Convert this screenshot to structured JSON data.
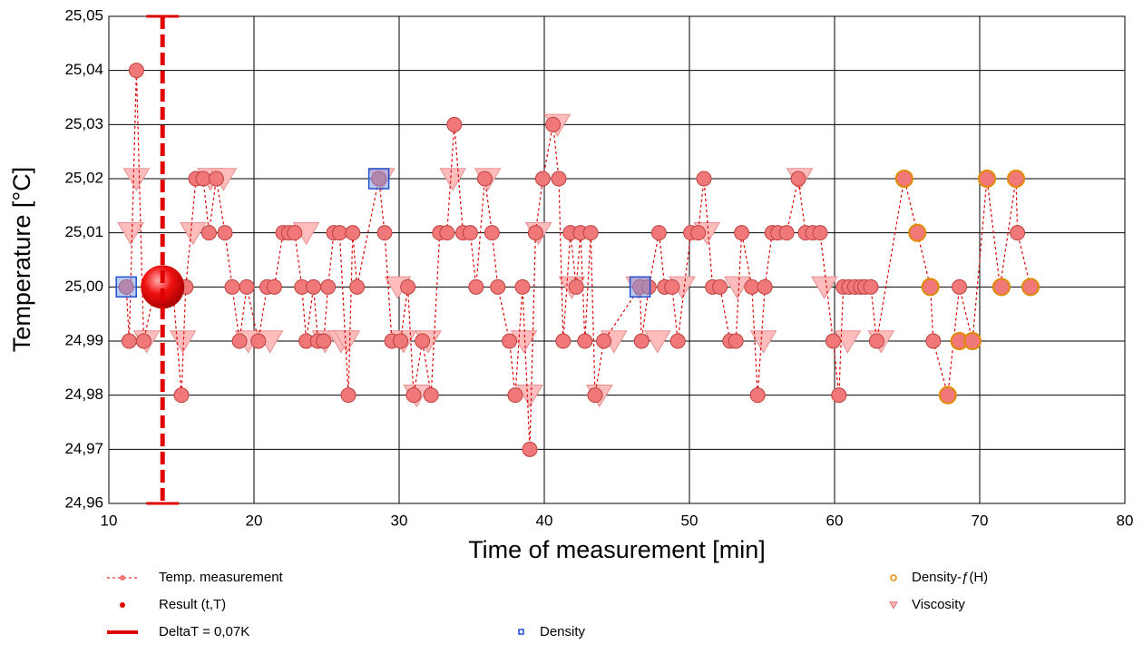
{
  "chart_data": {
    "type": "scatter",
    "x_label": "Time of measurement [min]",
    "y_label": "Temperature [°C]",
    "xlim": [
      10,
      80
    ],
    "xticks": [
      10,
      20,
      30,
      40,
      50,
      60,
      70,
      80
    ],
    "ylim": [
      24.96,
      25.05
    ],
    "yticks": [
      {
        "value": 24.96,
        "label": "24,96"
      },
      {
        "value": 24.97,
        "label": "24,97"
      },
      {
        "value": 24.98,
        "label": "24,98"
      },
      {
        "value": 24.99,
        "label": "24,99"
      },
      {
        "value": 25.0,
        "label": "25,00"
      },
      {
        "value": 25.01,
        "label": "25,01"
      },
      {
        "value": 25.02,
        "label": "25,02"
      },
      {
        "value": 25.03,
        "label": "25,03"
      },
      {
        "value": 25.04,
        "label": "25,04"
      },
      {
        "value": 25.05,
        "label": "25,05"
      }
    ],
    "grid": true,
    "series": [
      {
        "name": "Viscosity",
        "kind": "triangle",
        "color": "#ffbcbc",
        "x": [
          11.5,
          11.9,
          12.6,
          15.1,
          15.8,
          17.0,
          17.9,
          19.6,
          21.1,
          23.6,
          24.9,
          26.0,
          26.4,
          28.8,
          29.9,
          30.3,
          31.2,
          32.0,
          33.7,
          36.1,
          38.6,
          39.0,
          39.6,
          40.9,
          41.9,
          43.8,
          44.8,
          46.5,
          47.8,
          49.5,
          51.2,
          53.3,
          55.1,
          57.6,
          59.3,
          60.9,
          63.2
        ],
        "values": [
          25.01,
          25.02,
          24.99,
          24.99,
          25.01,
          25.02,
          25.02,
          24.99,
          24.99,
          25.01,
          24.99,
          24.99,
          24.99,
          25.02,
          25.0,
          24.99,
          24.98,
          24.99,
          25.02,
          25.02,
          24.99,
          24.98,
          25.01,
          25.03,
          25.0,
          24.98,
          24.99,
          25.0,
          24.99,
          25.0,
          25.01,
          25.0,
          24.99,
          25.02,
          25.0,
          24.99,
          24.99
        ]
      },
      {
        "name": "Temp. measurement",
        "kind": "line",
        "color": "#f07878",
        "x": [
          11.2,
          11.4,
          11.9,
          12.4,
          13.2,
          13.6,
          14.0,
          14.4,
          15.0,
          15.3,
          16.0,
          16.5,
          16.9,
          17.4,
          18.0,
          18.5,
          19.0,
          19.5,
          20.3,
          20.9,
          21.4,
          22.0,
          22.4,
          22.8,
          23.3,
          23.6,
          24.1,
          24.4,
          24.8,
          25.1,
          25.5,
          25.9,
          26.5,
          26.8,
          27.1,
          28.6,
          29.0,
          29.5,
          30.1,
          30.6,
          31.0,
          31.6,
          32.2,
          32.8,
          33.3,
          33.8,
          34.4,
          34.9,
          35.3,
          35.9,
          36.4,
          36.8,
          37.6,
          38.0,
          38.5,
          39.0,
          39.4,
          39.9,
          40.6,
          41.0,
          41.3,
          41.8,
          42.2,
          42.5,
          42.8,
          43.2,
          43.5,
          44.1,
          46.6,
          46.7,
          47.2,
          47.9,
          48.3,
          48.8,
          49.2,
          50.1,
          50.6,
          51.0,
          51.6,
          52.1,
          52.8,
          53.2,
          53.6,
          54.3,
          54.7,
          55.2,
          55.7,
          56.1,
          56.7,
          57.5,
          58.0,
          58.5,
          59.0,
          59.9,
          60.3,
          60.6,
          61.0,
          61.4,
          61.8,
          62.1,
          62.5,
          62.9,
          64.8,
          65.7,
          66.6,
          66.8,
          67.8,
          68.6,
          69.5,
          70.5,
          71.4,
          72.5,
          72.6,
          73.5
        ],
        "values": [
          25.0,
          24.99,
          25.04,
          24.99,
          25.0,
          25.0,
          25.0,
          25.0,
          24.98,
          25.0,
          25.02,
          25.02,
          25.01,
          25.02,
          25.01,
          25.0,
          24.99,
          25.0,
          24.99,
          25.0,
          25.0,
          25.01,
          25.01,
          25.01,
          25.0,
          24.99,
          25.0,
          24.99,
          24.99,
          25.0,
          25.01,
          25.01,
          24.98,
          25.01,
          25.0,
          25.02,
          25.01,
          24.99,
          24.99,
          25.0,
          24.98,
          24.99,
          24.98,
          25.01,
          25.01,
          25.03,
          25.01,
          25.01,
          25.0,
          25.02,
          25.01,
          25.0,
          24.99,
          24.98,
          25.0,
          24.97,
          25.01,
          25.02,
          25.03,
          25.02,
          24.99,
          25.01,
          25.0,
          25.01,
          24.99,
          25.01,
          24.98,
          24.99,
          25.0,
          24.99,
          25.0,
          25.01,
          25.0,
          25.0,
          24.99,
          25.01,
          25.01,
          25.02,
          25.0,
          25.0,
          24.99,
          24.99,
          25.01,
          25.0,
          24.98,
          25.0,
          25.01,
          25.01,
          25.01,
          25.02,
          25.01,
          25.01,
          25.01,
          24.99,
          24.98,
          25.0,
          25.0,
          25.0,
          25.0,
          25.0,
          25.0,
          24.99,
          25.02,
          25.01,
          25.0,
          24.99,
          24.98,
          25.0,
          24.99,
          25.02,
          25.0,
          25.02,
          25.01,
          25.0
        ]
      },
      {
        "name": "Density-ƒ(H)",
        "kind": "ring",
        "color": "#e08a00",
        "x": [
          64.8,
          65.7,
          66.6,
          67.8,
          68.6,
          69.5,
          70.5,
          71.5,
          72.5,
          73.5
        ],
        "values": [
          25.02,
          25.01,
          25.0,
          24.98,
          24.99,
          24.99,
          25.02,
          25.0,
          25.02,
          25.0
        ]
      },
      {
        "name": "Density",
        "kind": "square",
        "color": "#2050d0",
        "x": [
          11.2,
          28.6,
          46.6
        ],
        "values": [
          25.0,
          25.02,
          25.0
        ]
      },
      {
        "name": "Result (t,T)",
        "kind": "result",
        "color": "#e00000",
        "x": [
          13.7
        ],
        "values": [
          25.0
        ]
      },
      {
        "name": "DeltaT = 0,07K",
        "kind": "errorbar",
        "color": "#e00000",
        "x": [
          13.7
        ],
        "low": [
          24.96
        ],
        "high": [
          25.05
        ]
      }
    ]
  }
}
